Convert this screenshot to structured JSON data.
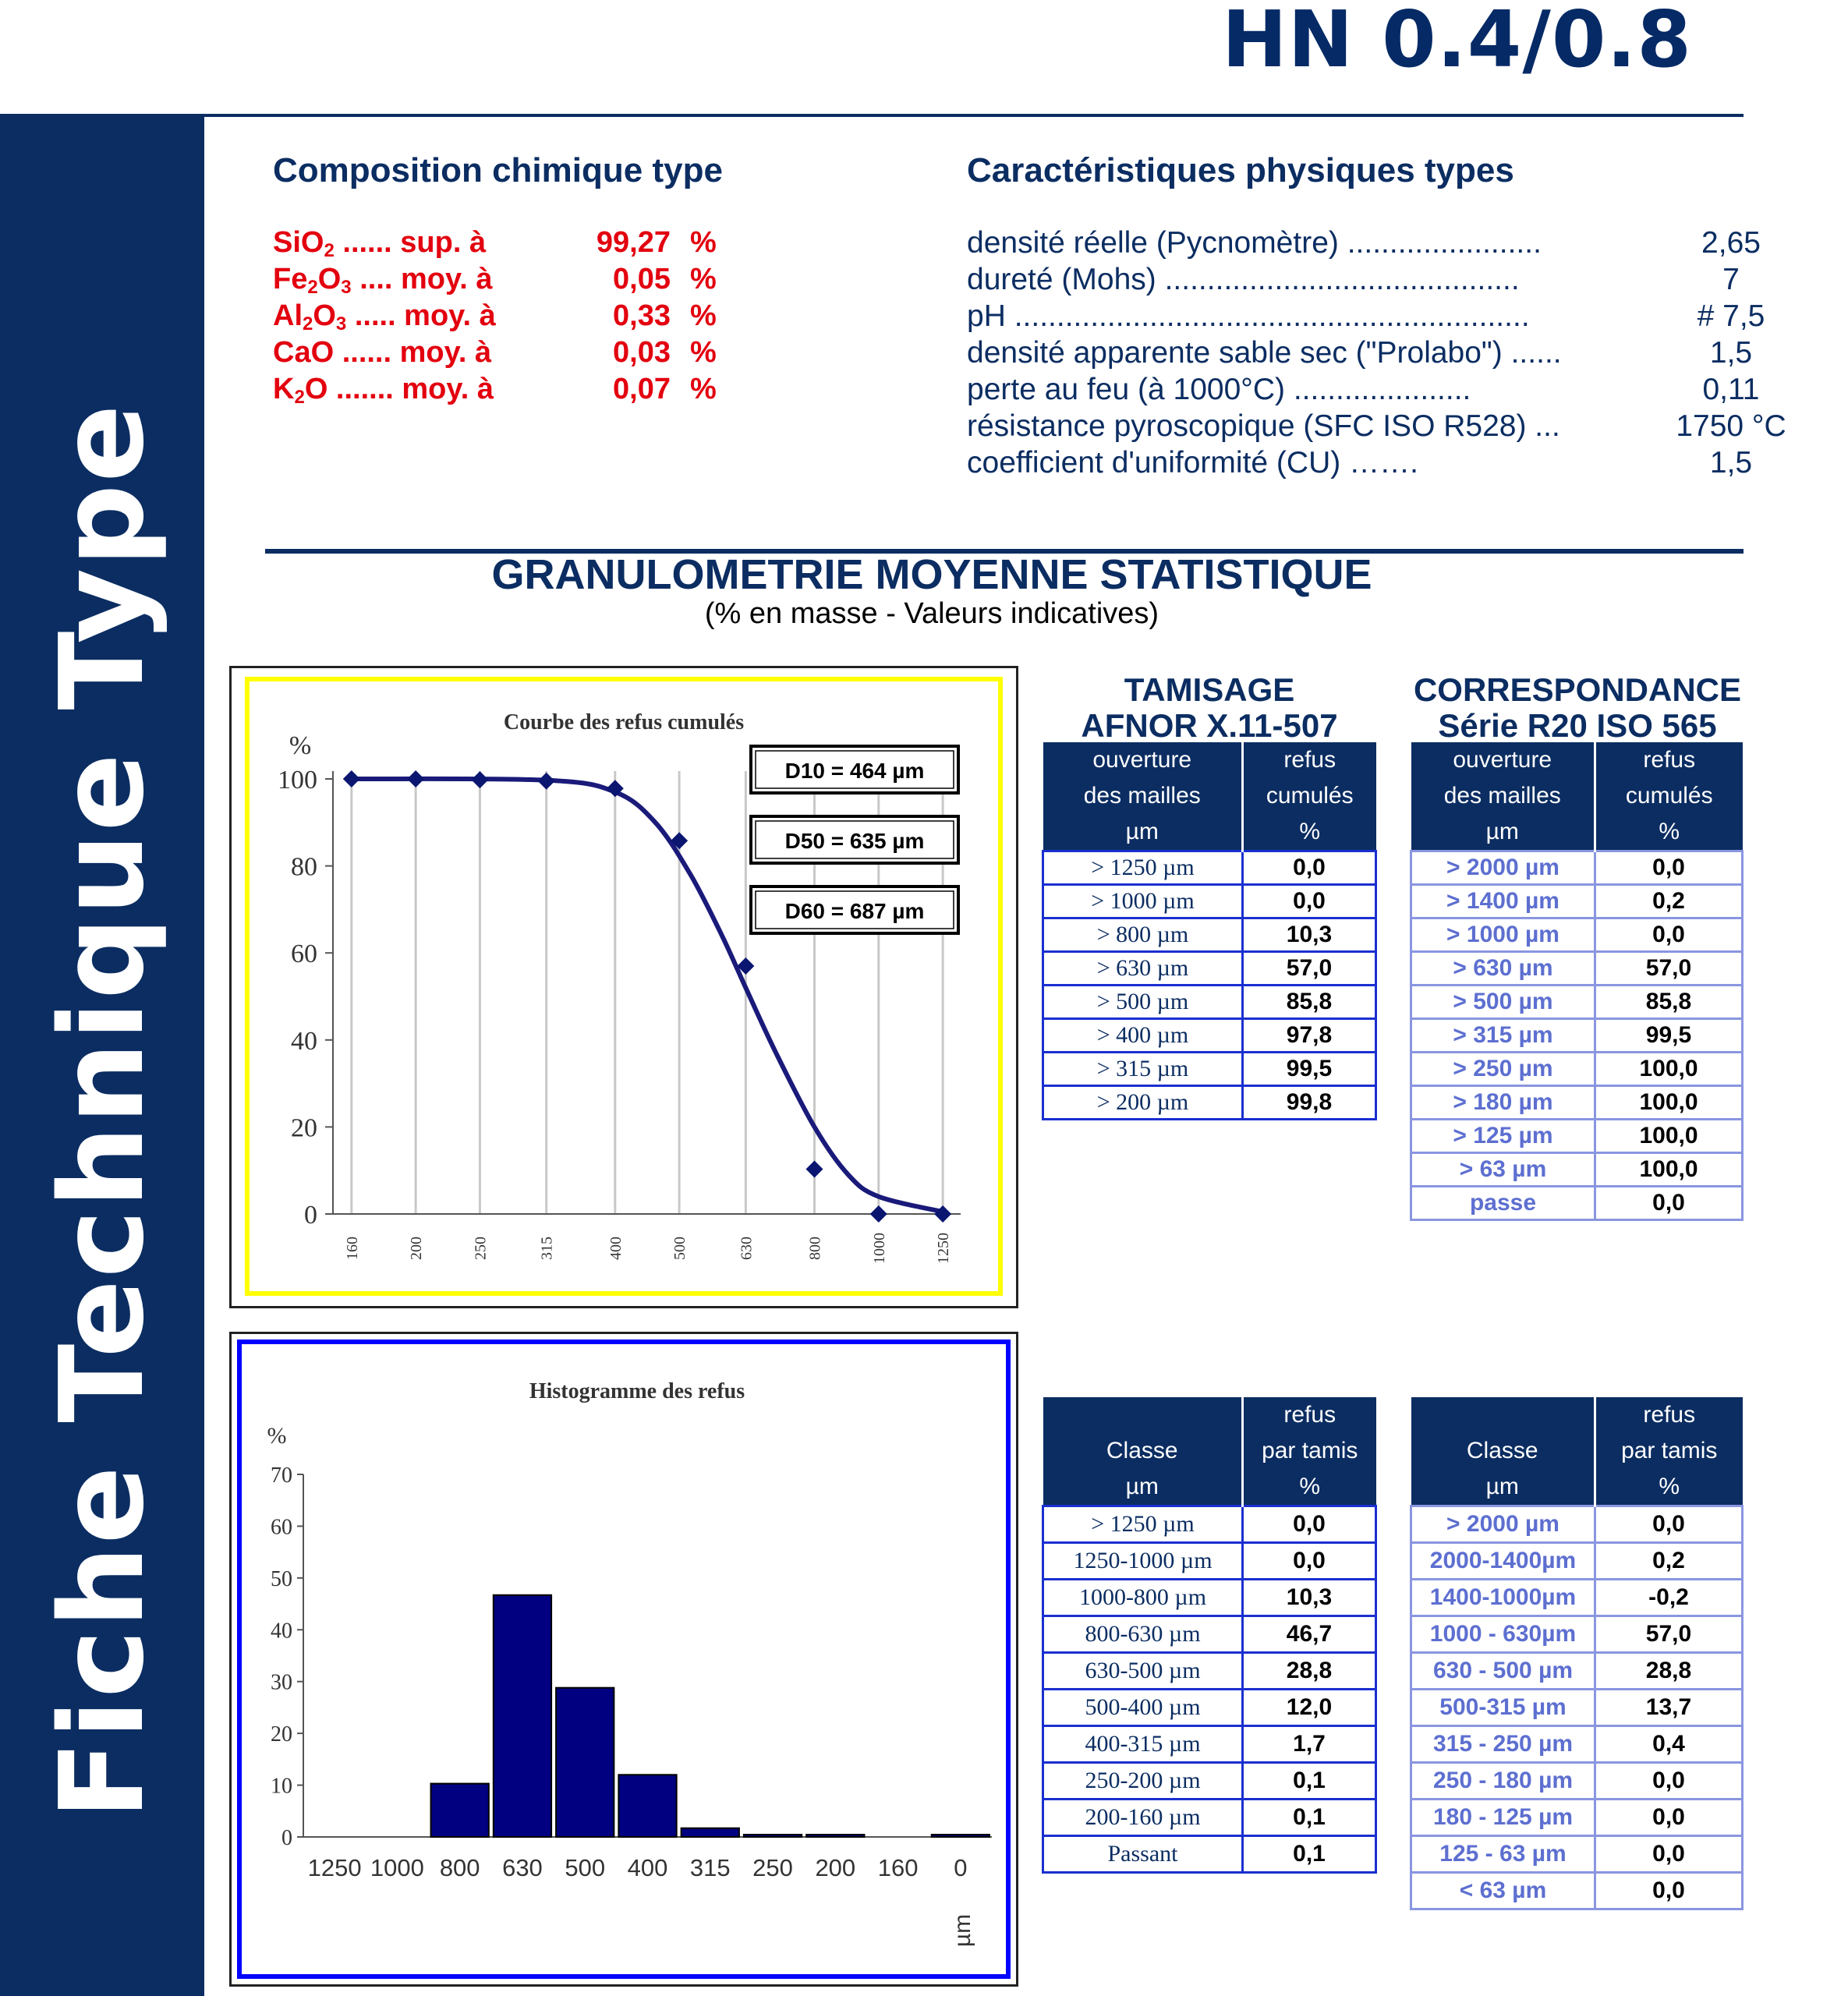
{
  "header": {
    "product": "HN 0.4/0.8",
    "side_title": "Fiche Technique Type"
  },
  "chemical": {
    "title": "Composition chimique type",
    "rows": [
      {
        "formula": "SiO",
        "sub": "2",
        "dots": " ...... sup. à",
        "value": "99,27",
        "unit": "%"
      },
      {
        "formula": "Fe",
        "sub": "2",
        "formula2": "O",
        "sub2": "3",
        "dots": " .... moy. à",
        "value": "0,05",
        "unit": "%"
      },
      {
        "formula": "Al",
        "sub": "2",
        "formula2": "O",
        "sub2": "3",
        "dots": " ..... moy. à",
        "value": "0,33",
        "unit": "%"
      },
      {
        "formula": "CaO",
        "sub": "",
        "dots": " ...... moy. à",
        "value": "0,03",
        "unit": "%"
      },
      {
        "formula": "K",
        "sub": "2",
        "formula2": "O",
        "sub2": "",
        "dots": " ....... moy. à",
        "value": "0,07",
        "unit": "%"
      }
    ]
  },
  "physical": {
    "title": "Caractéristiques physiques types",
    "rows": [
      {
        "label": "densité réelle (Pycnomètre) .......................",
        "value": "2,65"
      },
      {
        "label": "dureté (Mohs) ..........................................",
        "value": "7"
      },
      {
        "label": "pH .............................................................",
        "value": "# 7,5"
      },
      {
        "label": "densité apparente sable sec (\"Prolabo\") ......",
        "value": "1,5"
      },
      {
        "label": "perte au feu (à 1000°C) .....................",
        "value": "0,11"
      },
      {
        "label": "résistance pyroscopique (SFC ISO R528) ...",
        "value": "1750 °C"
      },
      {
        "label": "coefficient d'uniformité (CU) …….",
        "value": "1,5"
      }
    ]
  },
  "granulometrie": {
    "title": "GRANULOMETRIE MOYENNE STATISTIQUE",
    "subtitle": "(% en masse - Valeurs indicatives)"
  },
  "colors": {
    "navy": "#0b2d62",
    "red": "#e3000f",
    "yellow_frame": "#ffff00",
    "blue_frame": "#0000ff",
    "bar": "#000080"
  },
  "chart_data": [
    {
      "type": "line",
      "title": "Courbe des refus cumulés",
      "ylabel": "%",
      "ylim": [
        0,
        100
      ],
      "yticks": [
        "0",
        "20",
        "40",
        "60",
        "80",
        "100"
      ],
      "xticks": [
        "160",
        "200",
        "250",
        "315",
        "400",
        "500",
        "630",
        "800",
        "1000",
        "1250"
      ],
      "points": {
        "x": [
          160,
          200,
          250,
          315,
          400,
          500,
          630,
          800,
          1000,
          1250
        ],
        "y": [
          100,
          100,
          99.8,
          99.5,
          97.8,
          85.8,
          57.0,
          10.3,
          0,
          0
        ]
      },
      "curve": {
        "x": [
          160,
          315,
          400,
          460,
          520,
          580,
          630,
          700,
          800,
          900,
          1000,
          1250
        ],
        "y": [
          100,
          99.7,
          97,
          90,
          78,
          64,
          52,
          37,
          20,
          9,
          4,
          0.5
        ]
      },
      "annotations": [
        "D10 =  464  µm",
        "D50 =  635  µm",
        "D60 =  687  µm"
      ]
    },
    {
      "type": "bar",
      "title": "Histogramme des refus",
      "ylabel": "%",
      "xlabel": "µm",
      "ylim": [
        0,
        70
      ],
      "yticks": [
        "0",
        "10",
        "20",
        "30",
        "40",
        "50",
        "60",
        "70"
      ],
      "categories": [
        "1250",
        "1000",
        "800",
        "630",
        "500",
        "400",
        "315",
        "250",
        "200",
        "160",
        "0"
      ],
      "values": [
        0,
        0,
        10.3,
        46.7,
        28.8,
        12.0,
        1.7,
        0.1,
        0.1,
        0,
        0.1
      ]
    }
  ],
  "tables": {
    "afnor_cumul": {
      "title": [
        "TAMISAGE",
        "AFNOR  X.11-507"
      ],
      "headers": [
        [
          "ouverture",
          "des mailles",
          "µm"
        ],
        [
          "refus",
          "cumulés",
          "%"
        ]
      ],
      "rows": [
        [
          "> 1250 µm",
          "0,0"
        ],
        [
          "> 1000 µm",
          "0,0"
        ],
        [
          "> 800 µm",
          "10,3"
        ],
        [
          "> 630 µm",
          "57,0"
        ],
        [
          "> 500 µm",
          "85,8"
        ],
        [
          "> 400 µm",
          "97,8"
        ],
        [
          "> 315 µm",
          "99,5"
        ],
        [
          "> 200 µm",
          "99,8"
        ]
      ]
    },
    "iso_cumul": {
      "title": [
        "CORRESPONDANCE",
        "Série R20 ISO 565"
      ],
      "headers": [
        [
          "ouverture",
          "des mailles",
          "µm"
        ],
        [
          "refus",
          "cumulés",
          "%"
        ]
      ],
      "rows": [
        [
          "> 2000 µm",
          "0,0"
        ],
        [
          "> 1400 µm",
          "0,2"
        ],
        [
          "> 1000 µm",
          "0,0"
        ],
        [
          "> 630 µm",
          "57,0"
        ],
        [
          "> 500 µm",
          "85,8"
        ],
        [
          "> 315 µm",
          "99,5"
        ],
        [
          "> 250 µm",
          "100,0"
        ],
        [
          "> 180 µm",
          "100,0"
        ],
        [
          "> 125 µm",
          "100,0"
        ],
        [
          "> 63 µm",
          "100,0"
        ],
        [
          "passe",
          "0,0"
        ]
      ]
    },
    "afnor_classe": {
      "headers": [
        [
          "",
          "Classe",
          "µm"
        ],
        [
          "refus",
          "par tamis",
          "%"
        ]
      ],
      "rows": [
        [
          "> 1250 µm",
          "0,0"
        ],
        [
          "1250-1000 µm",
          "0,0"
        ],
        [
          "1000-800 µm",
          "10,3"
        ],
        [
          "800-630 µm",
          "46,7"
        ],
        [
          "630-500 µm",
          "28,8"
        ],
        [
          "500-400 µm",
          "12,0"
        ],
        [
          "400-315 µm",
          "1,7"
        ],
        [
          "250-200 µm",
          "0,1"
        ],
        [
          "200-160 µm",
          "0,1"
        ],
        [
          "Passant",
          "0,1"
        ]
      ]
    },
    "iso_classe": {
      "headers": [
        [
          "",
          "Classe",
          "µm"
        ],
        [
          "refus",
          "par tamis",
          "%"
        ]
      ],
      "rows": [
        [
          "> 2000 µm",
          "0,0"
        ],
        [
          "2000-1400µm",
          "0,2"
        ],
        [
          "1400-1000µm",
          "-0,2"
        ],
        [
          "1000 - 630µm",
          "57,0"
        ],
        [
          "630 - 500 µm",
          "28,8"
        ],
        [
          "500-315 µm",
          "13,7"
        ],
        [
          "315 - 250 µm",
          "0,4"
        ],
        [
          "250 - 180 µm",
          "0,0"
        ],
        [
          "180 - 125 µm",
          "0,0"
        ],
        [
          "125 - 63 µm",
          "0,0"
        ],
        [
          "< 63 µm",
          "0,0"
        ]
      ]
    }
  }
}
